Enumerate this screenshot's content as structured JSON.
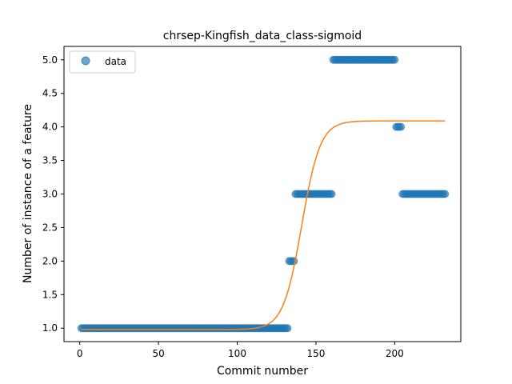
{
  "chart_data": {
    "type": "scatter",
    "title": "chrsep-Kingfish_data_class-sigmoid",
    "xlabel": "Commit number",
    "ylabel": "Number of instance of a feature",
    "xlim": [
      -10,
      242
    ],
    "ylim": [
      0.8,
      5.2
    ],
    "xticks": [
      0,
      50,
      100,
      150,
      200
    ],
    "yticks": [
      1.0,
      1.5,
      2.0,
      2.5,
      3.0,
      3.5,
      4.0,
      4.5,
      5.0
    ],
    "legend": {
      "position": "top-left",
      "entries": [
        "data"
      ]
    },
    "colors": {
      "data": "#1f77b4",
      "fit": "#ff7f0e"
    },
    "data_segments": [
      {
        "x_start": 1,
        "x_end": 132,
        "y": 1.0
      },
      {
        "x_start": 133,
        "x_end": 136,
        "y": 2.0
      },
      {
        "x_start": 137,
        "x_end": 160,
        "y": 3.0
      },
      {
        "x_start": 161,
        "x_end": 200,
        "y": 5.0
      },
      {
        "x_start": 201,
        "x_end": 204,
        "y": 4.0
      },
      {
        "x_start": 205,
        "x_end": 232,
        "y": 3.0
      }
    ],
    "fit_curve": {
      "model": "sigmoid",
      "lower": 0.98,
      "upper": 4.09,
      "midpoint": 141,
      "steepness": 0.17,
      "x_range": [
        1,
        232
      ]
    }
  }
}
